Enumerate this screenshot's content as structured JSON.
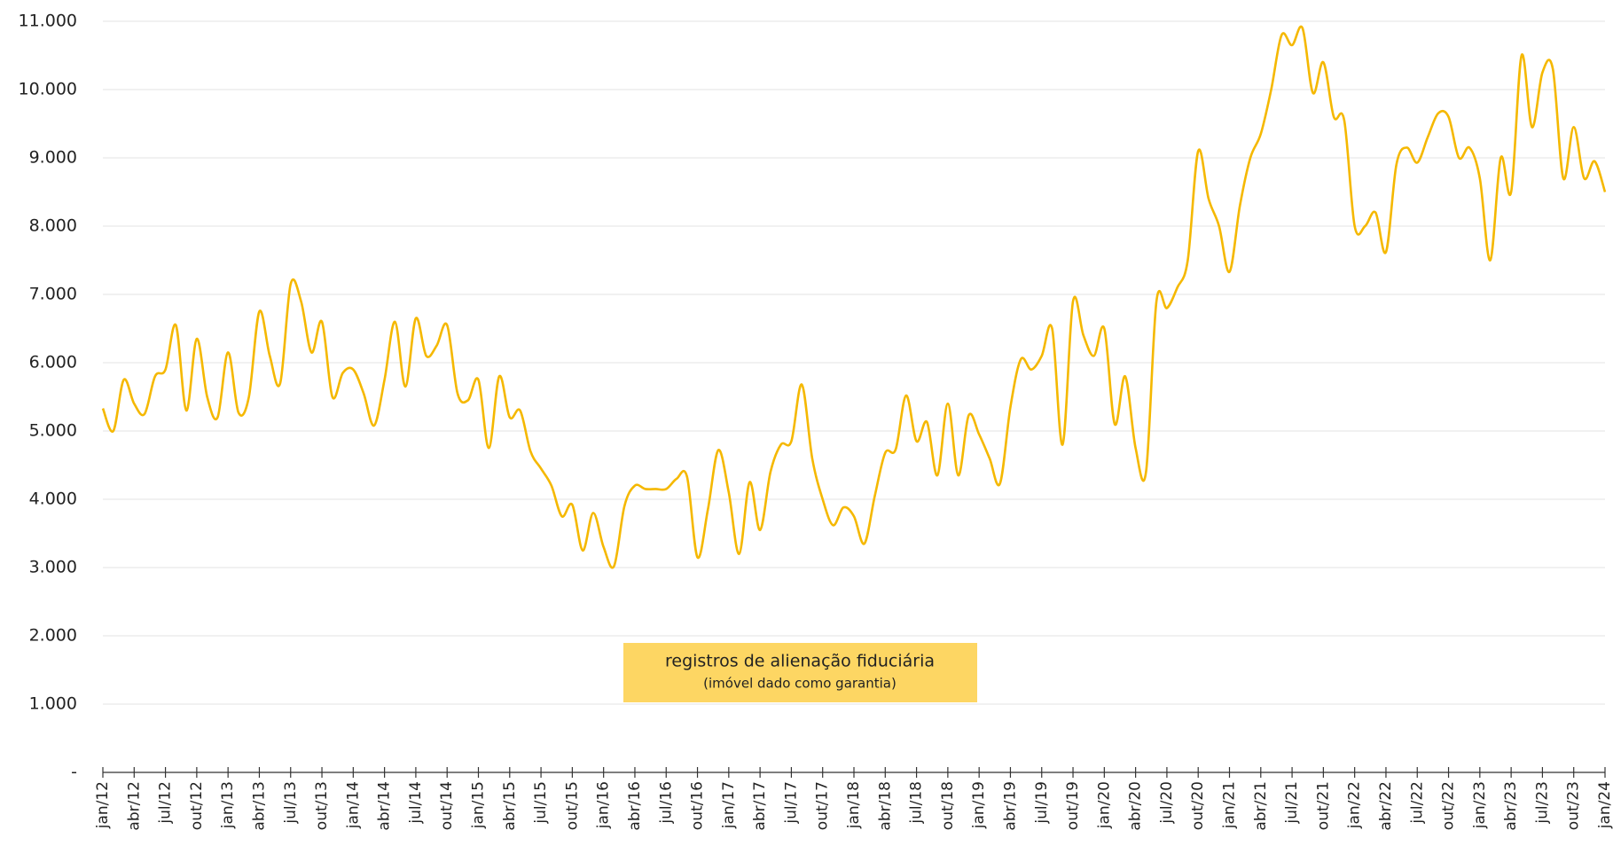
{
  "chart_data": {
    "type": "line",
    "categories": [
      "jan/12",
      null,
      null,
      "abr/12",
      null,
      null,
      "jul/12",
      null,
      null,
      "out/12",
      null,
      null,
      "jan/13",
      null,
      null,
      "abr/13",
      null,
      null,
      "jul/13",
      null,
      null,
      "out/13",
      null,
      null,
      "jan/14",
      null,
      null,
      "abr/14",
      null,
      null,
      "jul/14",
      null,
      null,
      "out/14",
      null,
      null,
      "jan/15",
      null,
      null,
      "abr/15",
      null,
      null,
      "jul/15",
      null,
      null,
      "out/15",
      null,
      null,
      "jan/16",
      null,
      null,
      "abr/16",
      null,
      null,
      "jul/16",
      null,
      null,
      "out/16",
      null,
      null,
      "jan/17",
      null,
      null,
      "abr/17",
      null,
      null,
      "jul/17",
      null,
      null,
      "out/17",
      null,
      null,
      "jan/18",
      null,
      null,
      "abr/18",
      null,
      null,
      "jul/18",
      null,
      null,
      "out/18",
      null,
      null,
      "jan/19",
      null,
      null,
      "abr/19",
      null,
      null,
      "jul/19",
      null,
      null,
      "out/19",
      null,
      null,
      "jan/20",
      null,
      null,
      "abr/20",
      null,
      null,
      "jul/20",
      null,
      null,
      "out/20",
      null,
      null,
      "jan/21",
      null,
      null,
      "abr/21",
      null,
      null,
      "jul/21",
      null,
      null,
      "out/21",
      null,
      null,
      "jan/22",
      null,
      null,
      "abr/22",
      null,
      null,
      "jul/22",
      null,
      null,
      "out/22",
      null,
      null,
      "jan/23",
      null,
      null,
      "abr/23",
      null,
      null,
      "jul/23",
      null,
      null,
      "out/23",
      null,
      null,
      "jan/24"
    ],
    "series": [
      {
        "name": "registros de alienação fiduciária",
        "color": "#f5b800",
        "values": [
          5330,
          5000,
          5750,
          5400,
          5250,
          5800,
          5900,
          6550,
          5300,
          6350,
          5500,
          5200,
          6150,
          5270,
          5500,
          6750,
          6100,
          5700,
          7150,
          6900,
          6150,
          6600,
          5500,
          5850,
          5900,
          5550,
          5080,
          5750,
          6600,
          5650,
          6650,
          6100,
          6250,
          6550,
          5550,
          5450,
          5750,
          4750,
          5800,
          5200,
          5300,
          4700,
          4450,
          4200,
          3750,
          3920,
          3250,
          3800,
          3300,
          3020,
          3900,
          4200,
          4150,
          4150,
          4150,
          4300,
          4330,
          3150,
          3850,
          4720,
          4100,
          3200,
          4250,
          3550,
          4400,
          4800,
          4850,
          5680,
          4600,
          4000,
          3620,
          3880,
          3750,
          3350,
          4050,
          4680,
          4730,
          5520,
          4850,
          5130,
          4350,
          5400,
          4350,
          5230,
          4950,
          4600,
          4230,
          5350,
          6050,
          5900,
          6100,
          6500,
          4800,
          6900,
          6400,
          6100,
          6500,
          5100,
          5800,
          4750,
          4400,
          6900,
          6800,
          7100,
          7500,
          9100,
          8400,
          8000,
          7330,
          8300,
          9000,
          9350,
          10000,
          10800,
          10650,
          10900,
          9950,
          10400,
          9600,
          9550,
          8000,
          8000,
          8200,
          7620,
          8900,
          9150,
          8930,
          9300,
          9650,
          9600,
          9000,
          9150,
          8700,
          7500,
          9000,
          8500,
          10500,
          9450,
          10250,
          10300,
          8700,
          9450,
          8700,
          8950,
          8500
        ]
      }
    ],
    "legend_note": "(imóvel dado como garantia)",
    "legend_color": "#fdd663",
    "ylim": [
      0,
      11000
    ],
    "yticks": [
      {
        "value": 0,
        "label": "-"
      },
      {
        "value": 1000,
        "label": "1.000"
      },
      {
        "value": 2000,
        "label": "2.000"
      },
      {
        "value": 3000,
        "label": "3.000"
      },
      {
        "value": 4000,
        "label": "4.000"
      },
      {
        "value": 5000,
        "label": "5.000"
      },
      {
        "value": 6000,
        "label": "6.000"
      },
      {
        "value": 7000,
        "label": "7.000"
      },
      {
        "value": 8000,
        "label": "8.000"
      },
      {
        "value": 9000,
        "label": "9.000"
      },
      {
        "value": 10000,
        "label": "10.000"
      },
      {
        "value": 11000,
        "label": "11.000"
      }
    ],
    "grid": true
  }
}
